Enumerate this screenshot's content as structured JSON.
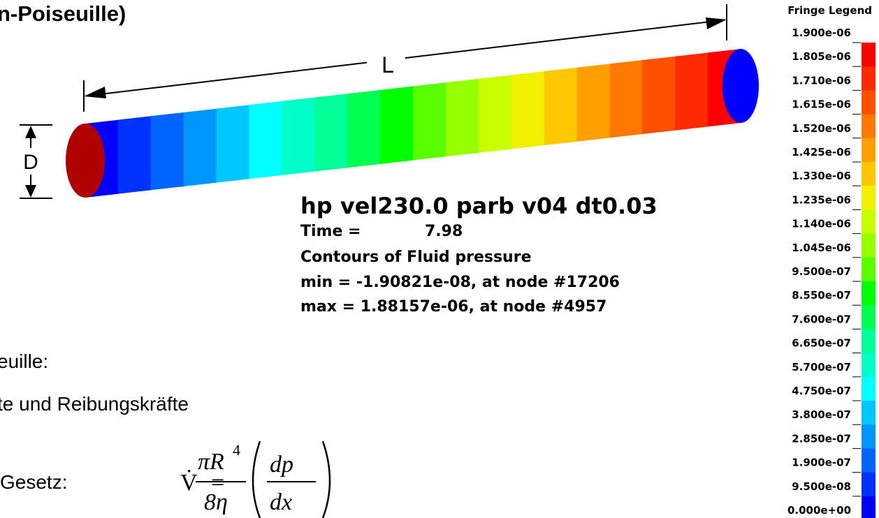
{
  "slide": {
    "title": "n-Poiseuille)",
    "dimension_length": "L",
    "dimension_diameter": "D",
    "bullets": [
      "euille:",
      "te und Reibungskräfte"
    ],
    "law_label": "Gesetz:",
    "formula": {
      "lhs": "V̇",
      "equals": "=",
      "numerator": "πR",
      "exponent": "4",
      "denominator": "8η",
      "d_num": "dp",
      "d_den": "dx"
    }
  },
  "simulation": {
    "run": "hp vel230.0 parb v04 dt0.03",
    "time_label": "Time =",
    "time_value": "7.98",
    "contours": "Contours of Fluid pressure",
    "min": "min = -1.90821e-08, at node #17206",
    "max": "max = 1.88157e-06, at node #4957"
  },
  "legend": {
    "title": "Fringe Legend",
    "labels": [
      "1.900e-06",
      "1.805e-06",
      "1.710e-06",
      "1.615e-06",
      "1.520e-06",
      "1.425e-06",
      "1.330e-06",
      "1.235e-06",
      "1.140e-06",
      "1.045e-06",
      "9.500e-07",
      "8.550e-07",
      "7.600e-07",
      "6.650e-07",
      "5.700e-07",
      "4.750e-07",
      "3.800e-07",
      "2.850e-07",
      "1.900e-07",
      "9.500e-08",
      "0.000e+00"
    ],
    "colors": [
      "#ff0000",
      "#ff2a00",
      "#ff5000",
      "#ff7800",
      "#ffa000",
      "#ffc800",
      "#f0f000",
      "#c8ff00",
      "#96ff00",
      "#5aff00",
      "#00ff00",
      "#00ff50",
      "#00ff96",
      "#00ffc8",
      "#00ffff",
      "#00c8ff",
      "#0096ff",
      "#0064ff",
      "#0032ff",
      "#0000ff"
    ]
  }
}
